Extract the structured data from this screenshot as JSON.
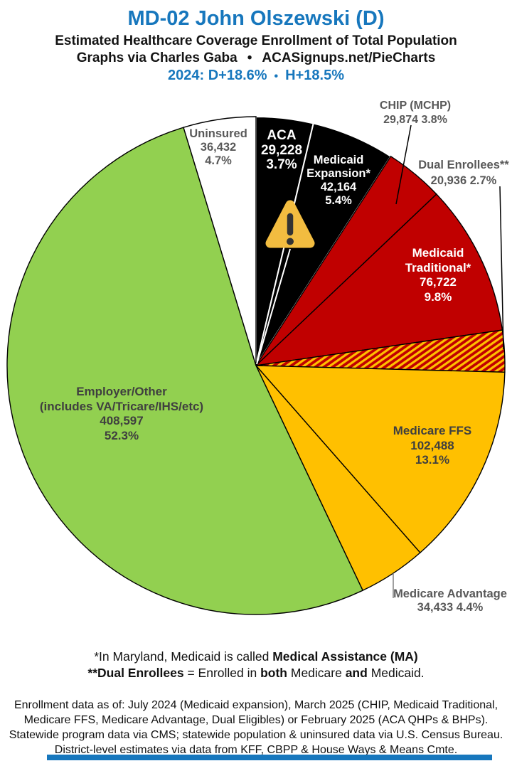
{
  "header": {
    "title": "MD-02 John Olszewski (D)",
    "subtitle": "Estimated Healthcare Coverage Enrollment of Total Population",
    "credit": "Graphs via Charles Gaba",
    "separator": "•",
    "site": "ACASignups.net/PieCharts",
    "partisan_2024": "2024: D+18.6%",
    "partisan_sep": "•",
    "partisan_house": "H+18.5%",
    "accent_blue": "#1777BD"
  },
  "chart_data": {
    "type": "pie",
    "title": "MD-02 John Olszewski (D) — Estimated Healthcare Coverage Enrollment of Total Population",
    "units": "people",
    "start_angle": "12 o'clock",
    "direction": "clockwise",
    "legend_position": "labels-on-slices",
    "slices": [
      {
        "name": "ACA",
        "value": 29228,
        "pct": 3.7,
        "color": "#000000",
        "stroke": "#FFFFFF",
        "label_lines": [
          "ACA",
          "29,228",
          "3.7%"
        ]
      },
      {
        "name": "Medicaid Expansion",
        "value": 42164,
        "pct": 5.4,
        "color": "#000000",
        "stroke": "#FFFFFF",
        "label_lines": [
          "Medicaid",
          "Expansion*",
          "42,164",
          "5.4%"
        ]
      },
      {
        "name": "CHIP (MCHP)",
        "value": 29874,
        "pct": 3.8,
        "color": "#C00000",
        "stroke": "#000000",
        "label_lines": [
          "CHIP (MCHP)",
          "29,874 3.8%"
        ]
      },
      {
        "name": "Medicaid Traditional",
        "value": 76722,
        "pct": 9.8,
        "color": "#C00000",
        "stroke": "#000000",
        "label_lines": [
          "Medicaid",
          "Traditional*",
          "76,722",
          "9.8%"
        ]
      },
      {
        "name": "Dual Enrollees",
        "value": 20936,
        "pct": 2.7,
        "color": "hatch",
        "hatch_colors": [
          "#C00000",
          "#FFC000"
        ],
        "stroke": "#000000",
        "label_lines": [
          "Dual Enrollees**",
          "20,936 2.7%"
        ]
      },
      {
        "name": "Medicare FFS",
        "value": 102488,
        "pct": 13.1,
        "color": "#FFC000",
        "stroke": "#000000",
        "label_lines": [
          "Medicare FFS",
          "102,488",
          "13.1%"
        ]
      },
      {
        "name": "Medicare Advantage",
        "value": 34433,
        "pct": 4.4,
        "color": "#FFC000",
        "stroke": "#000000",
        "label_lines": [
          "Medicare Advantage",
          "34,433 4.4%"
        ]
      },
      {
        "name": "Employer/Other",
        "value": 408597,
        "pct": 52.3,
        "color": "#92D050",
        "stroke": "#000000",
        "label_lines": [
          "Employer/Other",
          "(includes VA/Tricare/IHS/etc)",
          "408,597",
          "52.3%"
        ]
      },
      {
        "name": "Uninsured",
        "value": 36432,
        "pct": 4.7,
        "color": "#FFFFFF",
        "stroke": "#000000",
        "label_lines": [
          "Uninsured",
          "36,432",
          "4.7%"
        ]
      }
    ]
  },
  "footnotes": {
    "line1": [
      {
        "t": "*In Maryland, Medicaid is called "
      },
      {
        "t": "Medical Assistance (MA)"
      }
    ],
    "line2": [
      {
        "t": "**Dual Enrollees"
      },
      {
        "t": " = Enrolled in "
      },
      {
        "t": "both"
      },
      {
        "t": " Medicare "
      },
      {
        "t": "and"
      },
      {
        "t": " Medicaid."
      }
    ]
  },
  "source_lines": {
    "l1": "Enrollment data as of: July 2024 (Medicaid expansion), March 2025 (CHIP, Medicaid Traditional,",
    "l2": "Medicare FFS, Medicare Advantage, Dual Eligibles) or February 2025 (ACA QHPs & BHPs).",
    "l3": "Statewide program data via CMS; statewide population & uninsured data via U.S. Census Bureau.",
    "l4": "District-level estimates via data from KFF, CBPP & House Ways & Means Cmte."
  }
}
